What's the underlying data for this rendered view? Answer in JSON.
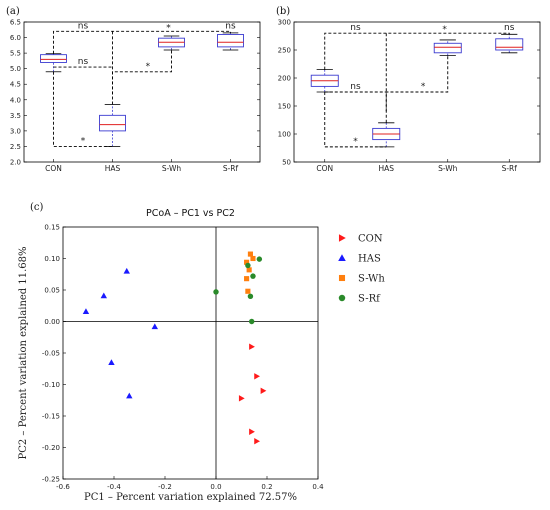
{
  "chart_data": [
    {
      "type": "box",
      "panel_label": "(a)",
      "categories": [
        "CON",
        "HAS",
        "S-Wh",
        "S-Rf"
      ],
      "ylim": [
        2.0,
        6.5
      ],
      "yticks": [
        "2.0",
        "2.5",
        "3.0",
        "3.5",
        "4.0",
        "4.5",
        "5.0",
        "5.5",
        "6.0",
        "6.5"
      ],
      "boxes": [
        {
          "name": "CON",
          "whisker_low": 4.9,
          "q1": 5.2,
          "median": 5.3,
          "q3": 5.45,
          "whisker_high": 5.48
        },
        {
          "name": "HAS",
          "whisker_low": 2.5,
          "q1": 3.0,
          "median": 3.2,
          "q3": 3.5,
          "whisker_high": 3.85
        },
        {
          "name": "S-Wh",
          "whisker_low": 5.6,
          "q1": 5.7,
          "median": 5.85,
          "q3": 5.98,
          "whisker_high": 6.05
        },
        {
          "name": "S-Rf",
          "whisker_low": 5.6,
          "q1": 5.7,
          "median": 5.85,
          "q3": 6.1,
          "whisker_high": 6.15
        }
      ],
      "comparisons": [
        {
          "from": "CON",
          "to": "HAS",
          "label": "ns",
          "level": 5.05
        },
        {
          "from": "HAS",
          "to": "S-Wh",
          "label": "*",
          "level": 4.9
        },
        {
          "from": "CON",
          "to": "HAS",
          "label": "*",
          "level": 2.5
        },
        {
          "from": "CON",
          "to": "S-Wh",
          "label": "ns",
          "level": 6.2
        },
        {
          "from": "S-Wh",
          "to": "S-Rf",
          "label": "*",
          "level": 6.2
        },
        {
          "from": "S-Rf",
          "to": "S-Rf",
          "label": "ns",
          "level": 6.2
        }
      ]
    },
    {
      "type": "box",
      "panel_label": "(b)",
      "categories": [
        "CON",
        "HAS",
        "S-Wh",
        "S-Rf"
      ],
      "ylim": [
        50,
        300
      ],
      "yticks": [
        "50",
        "100",
        "150",
        "200",
        "250",
        "300"
      ],
      "boxes": [
        {
          "name": "CON",
          "whisker_low": 175,
          "q1": 185,
          "median": 195,
          "q3": 205,
          "whisker_high": 215
        },
        {
          "name": "HAS",
          "whisker_low": 77,
          "q1": 90,
          "median": 100,
          "q3": 110,
          "whisker_high": 120
        },
        {
          "name": "S-Wh",
          "whisker_low": 240,
          "q1": 245,
          "median": 255,
          "q3": 262,
          "whisker_high": 268
        },
        {
          "name": "S-Rf",
          "whisker_low": 245,
          "q1": 250,
          "median": 255,
          "q3": 270,
          "whisker_high": 278
        }
      ],
      "comparisons": [
        {
          "from": "CON",
          "to": "HAS",
          "label": "ns",
          "level": 175
        },
        {
          "from": "HAS",
          "to": "S-Wh",
          "label": "*",
          "level": 175
        },
        {
          "from": "CON",
          "to": "HAS",
          "label": "*",
          "level": 77
        },
        {
          "from": "CON",
          "to": "S-Wh",
          "label": "ns",
          "level": 280
        },
        {
          "from": "S-Wh",
          "to": "S-Rf",
          "label": "*",
          "level": 280
        },
        {
          "from": "S-Rf",
          "to": "S-Rf",
          "label": "ns",
          "level": 280
        }
      ]
    },
    {
      "type": "scatter",
      "panel_label": "(c)",
      "title": "PCoA – PC1 vs PC2",
      "xlabel": "PC1 – Percent variation explained 72.57%",
      "ylabel": "PC2 – Percent variation explained 11.68%",
      "xlim": [
        -0.6,
        0.4
      ],
      "ylim": [
        -0.25,
        0.15
      ],
      "xticks": [
        "-0.6",
        "-0.4",
        "-0.2",
        "0.0",
        "0.2",
        "0.4"
      ],
      "yticks": [
        "0.15",
        "0.10",
        "0.05",
        "0.00",
        "-0.05",
        "-0.10",
        "-0.15",
        "-0.20",
        "-0.25"
      ],
      "series": [
        {
          "name": "CON",
          "color": "#ff1a1a",
          "marker": "right-triangle",
          "points": [
            [
              0.14,
              -0.04
            ],
            [
              0.16,
              -0.087
            ],
            [
              0.185,
              -0.11
            ],
            [
              0.1,
              -0.122
            ],
            [
              0.14,
              -0.175
            ],
            [
              0.16,
              -0.19
            ]
          ]
        },
        {
          "name": "HAS",
          "color": "#1a1aff",
          "marker": "triangle",
          "points": [
            [
              -0.35,
              0.08
            ],
            [
              -0.44,
              0.041
            ],
            [
              -0.51,
              0.016
            ],
            [
              -0.24,
              -0.008
            ],
            [
              -0.41,
              -0.065
            ],
            [
              -0.34,
              -0.118
            ]
          ]
        },
        {
          "name": "S-Wh",
          "color": "#ff7f0e",
          "marker": "square",
          "points": [
            [
              0.135,
              0.107
            ],
            [
              0.145,
              0.1
            ],
            [
              0.12,
              0.094
            ],
            [
              0.13,
              0.082
            ],
            [
              0.12,
              0.068
            ],
            [
              0.125,
              0.048
            ]
          ]
        },
        {
          "name": "S-Rf",
          "color": "#2a8a2a",
          "marker": "circle",
          "points": [
            [
              0.17,
              0.099
            ],
            [
              0.125,
              0.089
            ],
            [
              0.145,
              0.072
            ],
            [
              0.0,
              0.047
            ],
            [
              0.135,
              0.04
            ],
            [
              0.14,
              0.0
            ]
          ]
        }
      ],
      "legend": "right"
    }
  ]
}
